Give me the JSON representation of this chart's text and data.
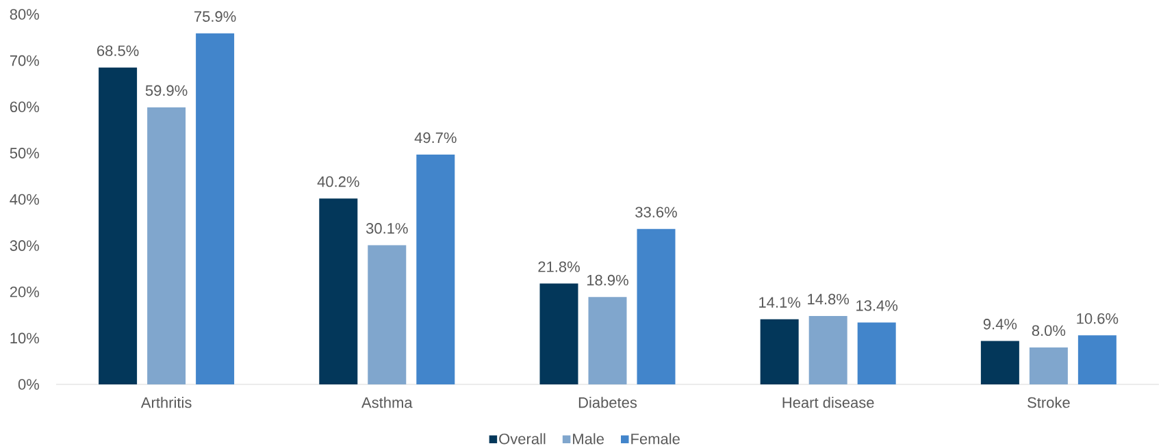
{
  "chart_data": {
    "type": "bar",
    "categories": [
      "Arthritis",
      "Asthma",
      "Diabetes",
      "Heart disease",
      "Stroke"
    ],
    "series": [
      {
        "name": "Overall",
        "color": "#03375a",
        "values": [
          68.5,
          40.2,
          21.8,
          14.1,
          9.4
        ],
        "value_labels": [
          "68.5%",
          "40.2%",
          "21.8%",
          "14.1%",
          "9.4%"
        ]
      },
      {
        "name": "Male",
        "color": "#80a6cd",
        "values": [
          59.9,
          30.1,
          18.9,
          14.8,
          8.0
        ],
        "value_labels": [
          "59.9%",
          "30.1%",
          "18.9%",
          "14.8%",
          "8.0%"
        ]
      },
      {
        "name": "Female",
        "color": "#4285cb",
        "values": [
          75.9,
          49.7,
          33.6,
          13.4,
          10.6
        ],
        "value_labels": [
          "75.9%",
          "49.7%",
          "33.6%",
          "13.4%",
          "10.6%"
        ]
      }
    ],
    "ylim": [
      0,
      80
    ],
    "yticks": [
      {
        "value": 0,
        "label": "0%"
      },
      {
        "value": 10,
        "label": "10%"
      },
      {
        "value": 20,
        "label": "20%"
      },
      {
        "value": 30,
        "label": "30%"
      },
      {
        "value": 40,
        "label": "40%"
      },
      {
        "value": 50,
        "label": "50%"
      },
      {
        "value": 60,
        "label": "60%"
      },
      {
        "value": 70,
        "label": "70%"
      },
      {
        "value": 80,
        "label": "80%"
      }
    ],
    "legend": "bottom"
  }
}
